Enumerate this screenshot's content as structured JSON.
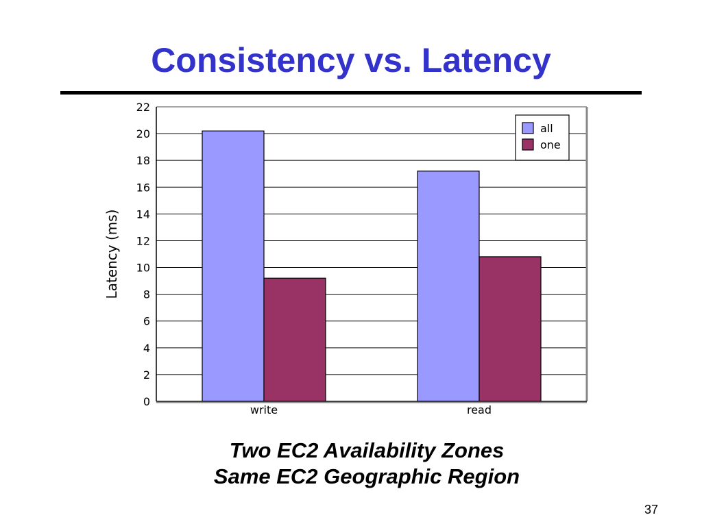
{
  "slide": {
    "title": "Consistency vs. Latency",
    "caption_line1": "Two EC2 Availability Zones",
    "caption_line2": "Same EC2 Geographic Region",
    "page_number": "37"
  },
  "colors": {
    "title": "#3333cc",
    "series_all": "#9999ff",
    "series_one": "#993366"
  },
  "chart_data": {
    "type": "bar",
    "categories": [
      "write",
      "read"
    ],
    "series": [
      {
        "name": "all",
        "values": [
          20.2,
          17.2
        ],
        "color": "#9999ff"
      },
      {
        "name": "one",
        "values": [
          9.2,
          10.8
        ],
        "color": "#993366"
      }
    ],
    "ylabel": "Latency (ms)",
    "ylim": [
      0,
      22
    ],
    "yticks": [
      0,
      2,
      4,
      6,
      8,
      10,
      12,
      14,
      16,
      18,
      20,
      22
    ],
    "grid": true,
    "legend": "top-right"
  }
}
